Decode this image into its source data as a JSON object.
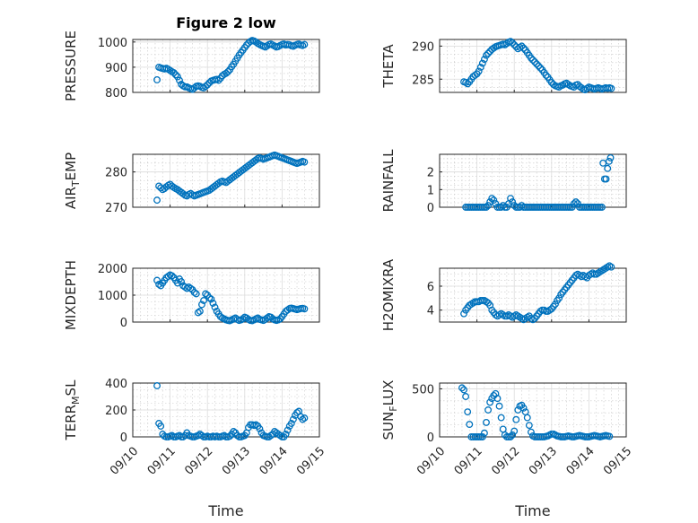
{
  "figure": {
    "title": "Figure 2 low",
    "xlabel": "Time",
    "xticks": [
      "09/10",
      "09/11",
      "09/12",
      "09/13",
      "09/14",
      "09/15"
    ],
    "marker_color": "#0072BD"
  },
  "chart_data": [
    {
      "type": "scatter",
      "id": "pressure",
      "ylabel": "PRESSURE",
      "xlim": [
        "09/10",
        "09/15"
      ],
      "ylim": [
        800,
        1010
      ],
      "yticks": [
        800,
        900,
        1000
      ],
      "grid": true,
      "x_days": [
        0.65,
        0.7,
        0.75,
        0.8,
        0.85,
        0.9,
        0.95,
        1.0,
        1.05,
        1.1,
        1.15,
        1.2,
        1.25,
        1.3,
        1.35,
        1.4,
        1.45,
        1.5,
        1.55,
        1.6,
        1.65,
        1.7,
        1.75,
        1.8,
        1.85,
        1.9,
        1.95,
        2.0,
        2.05,
        2.1,
        2.15,
        2.2,
        2.25,
        2.3,
        2.35,
        2.4,
        2.45,
        2.5,
        2.55,
        2.6,
        2.65,
        2.7,
        2.75,
        2.8,
        2.85,
        2.9,
        2.95,
        3.0,
        3.05,
        3.1,
        3.15,
        3.2,
        3.25,
        3.3,
        3.35,
        3.4,
        3.45,
        3.5,
        3.55,
        3.6,
        3.65,
        3.7,
        3.75,
        3.8,
        3.85,
        3.9,
        3.95,
        4.0,
        4.05,
        4.1,
        4.15,
        4.2,
        4.25,
        4.3,
        4.35,
        4.4,
        4.45,
        4.5,
        4.55,
        4.6
      ],
      "y": [
        850,
        900,
        897,
        895,
        893,
        896,
        892,
        887,
        882,
        878,
        870,
        862,
        848,
        832,
        826,
        822,
        822,
        818,
        815,
        812,
        818,
        824,
        826,
        824,
        820,
        818,
        824,
        830,
        838,
        845,
        848,
        850,
        852,
        848,
        856,
        866,
        872,
        876,
        882,
        890,
        902,
        912,
        924,
        936,
        948,
        958,
        968,
        978,
        988,
        996,
        1002,
        1006,
        1004,
        1000,
        994,
        990,
        986,
        983,
        980,
        985,
        990,
        992,
        988,
        984,
        980,
        982,
        986,
        990,
        992,
        988,
        990,
        989,
        985,
        983,
        987,
        990,
        992,
        988,
        986,
        990
      ]
    },
    {
      "type": "scatter",
      "id": "theta",
      "ylabel": "THETA",
      "xlim": [
        "09/10",
        "09/15"
      ],
      "ylim": [
        283,
        291
      ],
      "yticks": [
        285,
        290
      ],
      "grid": true,
      "x_days": [
        0.65,
        0.7,
        0.75,
        0.8,
        0.85,
        0.9,
        0.95,
        1.0,
        1.05,
        1.1,
        1.15,
        1.2,
        1.25,
        1.3,
        1.35,
        1.4,
        1.45,
        1.5,
        1.55,
        1.6,
        1.65,
        1.7,
        1.75,
        1.8,
        1.85,
        1.9,
        1.95,
        2.0,
        2.05,
        2.1,
        2.15,
        2.2,
        2.25,
        2.3,
        2.35,
        2.4,
        2.45,
        2.5,
        2.55,
        2.6,
        2.65,
        2.7,
        2.75,
        2.8,
        2.85,
        2.9,
        2.95,
        3.0,
        3.05,
        3.1,
        3.15,
        3.2,
        3.25,
        3.3,
        3.35,
        3.4,
        3.45,
        3.5,
        3.55,
        3.6,
        3.65,
        3.7,
        3.75,
        3.8,
        3.85,
        3.9,
        3.95,
        4.0,
        4.05,
        4.1,
        4.15,
        4.2,
        4.25,
        4.3,
        4.35,
        4.4,
        4.45,
        4.5,
        4.55,
        4.6
      ],
      "y": [
        284.6,
        284.5,
        284.3,
        284.6,
        285.0,
        285.4,
        285.6,
        285.8,
        286.2,
        286.8,
        287.4,
        288.0,
        288.6,
        288.9,
        289.2,
        289.5,
        289.7,
        289.9,
        290.0,
        290.1,
        290.2,
        290.3,
        290.2,
        290.4,
        290.6,
        290.7,
        290.5,
        290.2,
        289.9,
        289.6,
        289.8,
        290.0,
        289.7,
        289.4,
        289.0,
        288.6,
        288.2,
        287.9,
        287.6,
        287.3,
        287.0,
        286.7,
        286.4,
        286.0,
        285.6,
        285.3,
        284.9,
        284.5,
        284.2,
        284.0,
        283.9,
        283.8,
        284.0,
        284.1,
        284.3,
        284.4,
        284.2,
        284.0,
        283.9,
        283.8,
        284.1,
        284.2,
        283.9,
        283.7,
        283.5,
        283.4,
        283.6,
        283.8,
        283.7,
        283.6,
        283.5,
        283.6,
        283.7,
        283.6,
        283.5,
        283.6,
        283.7,
        283.6,
        283.7,
        283.6
      ]
    },
    {
      "type": "scatter",
      "id": "air_temp",
      "ylabel": "AIR_TEMP",
      "xlim": [
        "09/10",
        "09/15"
      ],
      "ylim": [
        270,
        285
      ],
      "yticks": [
        270,
        280
      ],
      "grid": true,
      "x_days": [
        0.65,
        0.7,
        0.75,
        0.8,
        0.85,
        0.9,
        0.95,
        1.0,
        1.05,
        1.1,
        1.15,
        1.2,
        1.25,
        1.3,
        1.35,
        1.4,
        1.45,
        1.5,
        1.55,
        1.6,
        1.65,
        1.7,
        1.75,
        1.8,
        1.85,
        1.9,
        1.95,
        2.0,
        2.05,
        2.1,
        2.15,
        2.2,
        2.25,
        2.3,
        2.35,
        2.4,
        2.45,
        2.5,
        2.55,
        2.6,
        2.65,
        2.7,
        2.75,
        2.8,
        2.85,
        2.9,
        2.95,
        3.0,
        3.05,
        3.1,
        3.15,
        3.2,
        3.25,
        3.3,
        3.35,
        3.4,
        3.45,
        3.5,
        3.55,
        3.6,
        3.65,
        3.7,
        3.75,
        3.8,
        3.85,
        3.9,
        3.95,
        4.0,
        4.05,
        4.1,
        4.15,
        4.2,
        4.25,
        4.3,
        4.35,
        4.4,
        4.45,
        4.5,
        4.55,
        4.6
      ],
      "y": [
        272.0,
        276.0,
        275.5,
        275.0,
        275.3,
        275.8,
        276.2,
        276.5,
        276.0,
        275.6,
        275.3,
        275.0,
        274.6,
        274.2,
        273.8,
        273.4,
        273.2,
        273.6,
        273.9,
        273.5,
        273.2,
        273.4,
        273.6,
        273.8,
        274.0,
        274.2,
        274.4,
        274.6,
        274.8,
        275.2,
        275.6,
        276.0,
        276.4,
        276.8,
        277.2,
        277.4,
        277.2,
        277.0,
        277.4,
        277.8,
        278.2,
        278.6,
        279.0,
        279.4,
        279.8,
        280.2,
        280.6,
        281.0,
        281.4,
        281.8,
        282.2,
        282.6,
        283.0,
        283.4,
        283.8,
        284.0,
        283.8,
        283.6,
        283.8,
        284.0,
        284.2,
        284.4,
        284.6,
        284.8,
        284.6,
        284.4,
        284.2,
        284.0,
        283.8,
        283.6,
        283.4,
        283.2,
        283.0,
        282.8,
        282.6,
        282.4,
        282.6,
        282.8,
        283.0,
        282.8
      ]
    },
    {
      "type": "scatter",
      "id": "rainfall",
      "ylabel": "RAINFALL",
      "xlim": [
        "09/10",
        "09/15"
      ],
      "ylim": [
        0,
        3
      ],
      "yticks": [
        0,
        1,
        2
      ],
      "grid": true,
      "x_days": [
        0.7,
        0.75,
        0.8,
        0.85,
        0.9,
        0.95,
        1.0,
        1.05,
        1.1,
        1.15,
        1.2,
        1.25,
        1.3,
        1.35,
        1.4,
        1.45,
        1.5,
        1.55,
        1.6,
        1.65,
        1.7,
        1.75,
        1.8,
        1.85,
        1.9,
        1.95,
        2.0,
        2.05,
        2.1,
        2.15,
        2.2,
        2.25,
        2.3,
        2.35,
        2.4,
        2.45,
        2.5,
        2.55,
        2.6,
        2.65,
        2.7,
        2.75,
        2.8,
        2.85,
        2.9,
        2.95,
        3.0,
        3.05,
        3.1,
        3.15,
        3.2,
        3.25,
        3.3,
        3.35,
        3.4,
        3.45,
        3.5,
        3.55,
        3.6,
        3.65,
        3.7,
        3.75,
        3.8,
        3.85,
        3.9,
        3.95,
        4.0,
        4.05,
        4.1,
        4.15,
        4.2,
        4.25,
        4.3,
        4.35,
        4.38,
        4.42,
        4.46,
        4.5,
        4.54,
        4.58
      ],
      "y": [
        0,
        0,
        0,
        0,
        0,
        0,
        0,
        0,
        0,
        0,
        0,
        0,
        0.1,
        0.3,
        0.5,
        0.4,
        0.2,
        0,
        0,
        0,
        0.1,
        0,
        0,
        0.2,
        0.5,
        0.3,
        0.1,
        0,
        0,
        0,
        0.1,
        0,
        0,
        0,
        0,
        0,
        0,
        0,
        0,
        0,
        0,
        0,
        0,
        0,
        0,
        0,
        0,
        0,
        0,
        0,
        0,
        0,
        0,
        0,
        0,
        0,
        0,
        0,
        0.2,
        0.3,
        0.2,
        0,
        0,
        0,
        0,
        0,
        0,
        0,
        0,
        0,
        0,
        0,
        0,
        0,
        2.5,
        1.6,
        1.6,
        2.2,
        2.6,
        2.8
      ]
    },
    {
      "type": "scatter",
      "id": "mixdepth",
      "ylabel": "MIXDEPTH",
      "xlim": [
        "09/10",
        "09/15"
      ],
      "ylim": [
        0,
        2000
      ],
      "yticks": [
        0,
        1000,
        2000
      ],
      "grid": true,
      "x_days": [
        0.65,
        0.7,
        0.75,
        0.8,
        0.85,
        0.9,
        0.95,
        1.0,
        1.05,
        1.1,
        1.15,
        1.2,
        1.25,
        1.3,
        1.35,
        1.4,
        1.45,
        1.5,
        1.55,
        1.6,
        1.65,
        1.7,
        1.75,
        1.8,
        1.85,
        1.9,
        1.95,
        2.0,
        2.05,
        2.1,
        2.15,
        2.2,
        2.25,
        2.3,
        2.35,
        2.4,
        2.45,
        2.5,
        2.55,
        2.6,
        2.65,
        2.7,
        2.75,
        2.8,
        2.85,
        2.9,
        2.95,
        3.0,
        3.05,
        3.1,
        3.15,
        3.2,
        3.25,
        3.3,
        3.35,
        3.4,
        3.45,
        3.5,
        3.55,
        3.6,
        3.65,
        3.7,
        3.75,
        3.8,
        3.85,
        3.9,
        3.95,
        4.0,
        4.05,
        4.1,
        4.15,
        4.2,
        4.25,
        4.3,
        4.35,
        4.4,
        4.45,
        4.5,
        4.55,
        4.6
      ],
      "y": [
        1550,
        1400,
        1350,
        1450,
        1550,
        1650,
        1700,
        1750,
        1720,
        1650,
        1550,
        1450,
        1600,
        1500,
        1350,
        1300,
        1250,
        1300,
        1250,
        1200,
        1100,
        1050,
        350,
        400,
        650,
        800,
        1050,
        1000,
        900,
        850,
        700,
        550,
        400,
        300,
        200,
        150,
        120,
        80,
        60,
        50,
        80,
        120,
        150,
        100,
        60,
        80,
        120,
        180,
        150,
        100,
        60,
        50,
        80,
        120,
        150,
        100,
        80,
        60,
        100,
        150,
        200,
        180,
        120,
        80,
        60,
        80,
        120,
        200,
        300,
        400,
        450,
        500,
        520,
        500,
        480,
        460,
        480,
        500,
        510,
        490
      ]
    },
    {
      "type": "scatter",
      "id": "h2omixra",
      "ylabel": "H2OMIXRA",
      "xlim": [
        "09/10",
        "09/15"
      ],
      "ylim": [
        3,
        7.5
      ],
      "yticks": [
        4,
        6
      ],
      "grid": true,
      "x_days": [
        0.65,
        0.7,
        0.75,
        0.8,
        0.85,
        0.9,
        0.95,
        1.0,
        1.05,
        1.1,
        1.15,
        1.2,
        1.25,
        1.3,
        1.35,
        1.4,
        1.45,
        1.5,
        1.55,
        1.6,
        1.65,
        1.7,
        1.75,
        1.8,
        1.85,
        1.9,
        1.95,
        2.0,
        2.05,
        2.1,
        2.15,
        2.2,
        2.25,
        2.3,
        2.35,
        2.4,
        2.45,
        2.5,
        2.55,
        2.6,
        2.65,
        2.7,
        2.75,
        2.8,
        2.85,
        2.9,
        2.95,
        3.0,
        3.05,
        3.1,
        3.15,
        3.2,
        3.25,
        3.3,
        3.35,
        3.4,
        3.45,
        3.5,
        3.55,
        3.6,
        3.65,
        3.7,
        3.75,
        3.8,
        3.85,
        3.9,
        3.95,
        4.0,
        4.05,
        4.1,
        4.15,
        4.2,
        4.25,
        4.3,
        4.35,
        4.4,
        4.45,
        4.5,
        4.55,
        4.6
      ],
      "y": [
        3.7,
        4.0,
        4.2,
        4.4,
        4.5,
        4.6,
        4.7,
        4.7,
        4.7,
        4.8,
        4.8,
        4.8,
        4.7,
        4.6,
        4.4,
        4.0,
        3.8,
        3.6,
        3.5,
        3.6,
        3.7,
        3.6,
        3.5,
        3.5,
        3.6,
        3.5,
        3.4,
        3.5,
        3.6,
        3.5,
        3.4,
        3.3,
        3.2,
        3.3,
        3.4,
        3.5,
        3.3,
        3.2,
        3.3,
        3.5,
        3.7,
        3.9,
        4.0,
        4.0,
        3.9,
        3.9,
        4.0,
        4.1,
        4.3,
        4.5,
        4.8,
        5.0,
        5.3,
        5.5,
        5.7,
        5.9,
        6.1,
        6.3,
        6.5,
        6.7,
        6.9,
        7.0,
        6.9,
        6.8,
        6.9,
        6.8,
        6.7,
        6.9,
        7.0,
        7.1,
        7.0,
        7.0,
        7.1,
        7.2,
        7.3,
        7.4,
        7.5,
        7.6,
        7.7,
        7.6
      ]
    },
    {
      "type": "scatter",
      "id": "terr_msl",
      "ylabel": "TERR_MSL",
      "xlim": [
        "09/10",
        "09/15"
      ],
      "ylim": [
        0,
        400
      ],
      "yticks": [
        0,
        200,
        400
      ],
      "grid": true,
      "x_days": [
        0.65,
        0.7,
        0.75,
        0.8,
        0.85,
        0.9,
        0.95,
        1.0,
        1.05,
        1.1,
        1.15,
        1.2,
        1.25,
        1.3,
        1.35,
        1.4,
        1.45,
        1.5,
        1.55,
        1.6,
        1.65,
        1.7,
        1.75,
        1.8,
        1.85,
        1.9,
        1.95,
        2.0,
        2.05,
        2.1,
        2.15,
        2.2,
        2.25,
        2.3,
        2.35,
        2.4,
        2.45,
        2.5,
        2.55,
        2.6,
        2.65,
        2.7,
        2.75,
        2.8,
        2.85,
        2.9,
        2.95,
        3.0,
        3.05,
        3.1,
        3.15,
        3.2,
        3.25,
        3.3,
        3.35,
        3.4,
        3.45,
        3.5,
        3.55,
        3.6,
        3.65,
        3.7,
        3.75,
        3.8,
        3.85,
        3.9,
        3.95,
        4.0,
        4.05,
        4.1,
        4.15,
        4.2,
        4.25,
        4.3,
        4.35,
        4.4,
        4.45,
        4.5,
        4.55,
        4.6
      ],
      "y": [
        380,
        100,
        80,
        20,
        5,
        0,
        0,
        5,
        10,
        0,
        0,
        5,
        10,
        0,
        0,
        10,
        30,
        10,
        5,
        0,
        0,
        5,
        10,
        20,
        10,
        0,
        0,
        5,
        0,
        0,
        5,
        0,
        5,
        0,
        0,
        5,
        10,
        0,
        0,
        5,
        20,
        40,
        30,
        10,
        0,
        0,
        5,
        10,
        30,
        70,
        90,
        90,
        85,
        90,
        80,
        60,
        30,
        10,
        5,
        0,
        0,
        10,
        20,
        40,
        30,
        20,
        10,
        0,
        0,
        20,
        50,
        80,
        100,
        130,
        160,
        180,
        190,
        150,
        130,
        140
      ]
    },
    {
      "type": "scatter",
      "id": "sun_flux",
      "ylabel": "SUN_FLUX",
      "xlim": [
        "09/10",
        "09/15"
      ],
      "ylim": [
        0,
        560
      ],
      "yticks": [
        0,
        500
      ],
      "grid": true,
      "x_days": [
        0.6,
        0.65,
        0.7,
        0.75,
        0.8,
        0.85,
        0.9,
        0.95,
        1.0,
        1.05,
        1.1,
        1.15,
        1.2,
        1.25,
        1.3,
        1.35,
        1.4,
        1.45,
        1.5,
        1.55,
        1.6,
        1.65,
        1.7,
        1.75,
        1.8,
        1.85,
        1.9,
        1.95,
        2.0,
        2.05,
        2.1,
        2.15,
        2.2,
        2.25,
        2.3,
        2.35,
        2.4,
        2.45,
        2.5,
        2.55,
        2.6,
        2.65,
        2.7,
        2.75,
        2.8,
        2.85,
        2.9,
        2.95,
        3.0,
        3.05,
        3.1,
        3.15,
        3.2,
        3.25,
        3.3,
        3.35,
        3.4,
        3.45,
        3.5,
        3.55,
        3.6,
        3.65,
        3.7,
        3.75,
        3.8,
        3.85,
        3.9,
        3.95,
        4.0,
        4.05,
        4.1,
        4.15,
        4.2,
        4.25,
        4.3,
        4.35,
        4.4,
        4.45,
        4.5,
        4.55
      ],
      "y": [
        510,
        490,
        420,
        260,
        130,
        0,
        0,
        0,
        0,
        0,
        0,
        0,
        40,
        150,
        280,
        360,
        400,
        430,
        450,
        400,
        320,
        200,
        80,
        20,
        0,
        0,
        0,
        20,
        60,
        180,
        280,
        320,
        330,
        300,
        260,
        200,
        120,
        50,
        10,
        0,
        0,
        0,
        0,
        0,
        0,
        5,
        10,
        20,
        30,
        30,
        20,
        10,
        5,
        0,
        0,
        0,
        5,
        10,
        5,
        0,
        0,
        5,
        10,
        15,
        10,
        5,
        0,
        0,
        0,
        5,
        10,
        15,
        10,
        5,
        0,
        5,
        10,
        15,
        10,
        5
      ]
    }
  ]
}
